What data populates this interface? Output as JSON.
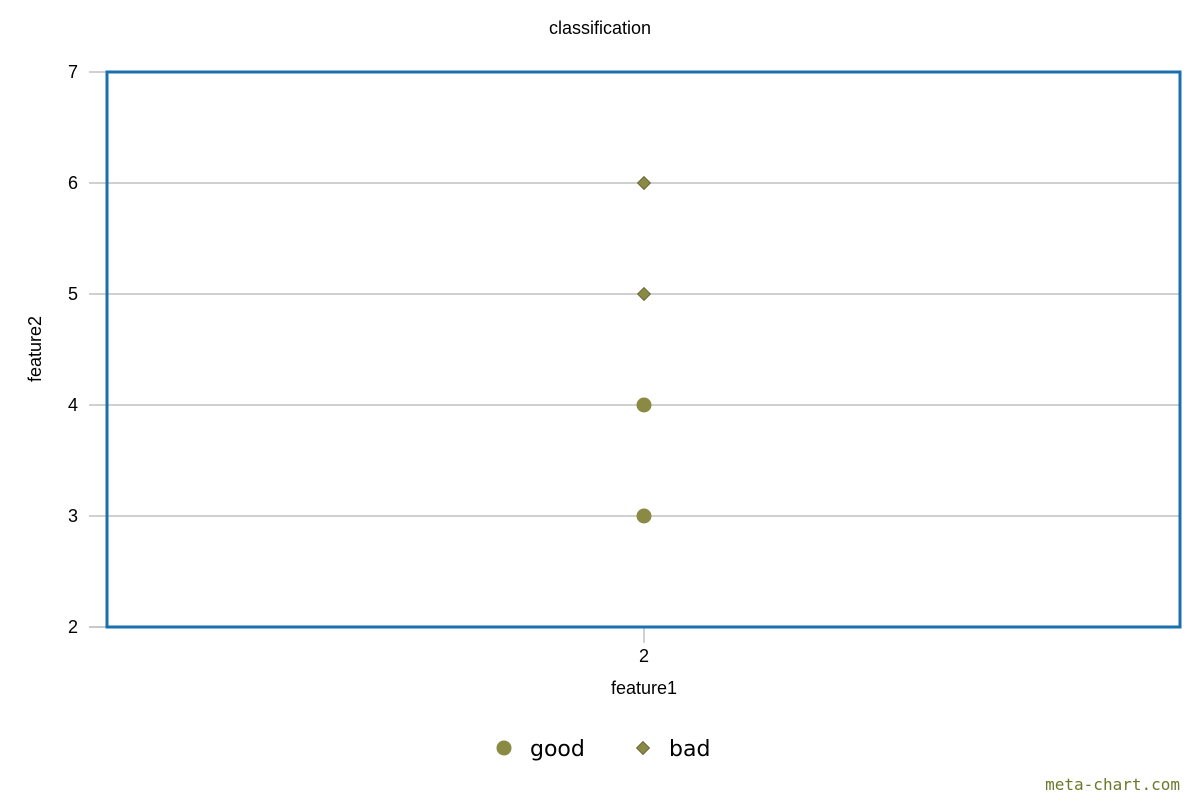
{
  "chart_data": {
    "type": "scatter",
    "title": "classification",
    "xlabel": "feature1",
    "ylabel": "feature2",
    "xticks": [
      2
    ],
    "yticks": [
      2,
      3,
      4,
      5,
      6,
      7
    ],
    "ylim": [
      2,
      7
    ],
    "grid": "horizontal",
    "legend_position": "bottom",
    "series": [
      {
        "name": "good",
        "marker": "circle",
        "color": "#8a8a45",
        "points": [
          {
            "x": 2,
            "y": 3
          },
          {
            "x": 2,
            "y": 4
          }
        ]
      },
      {
        "name": "bad",
        "marker": "diamond",
        "color": "#8a8a45",
        "points": [
          {
            "x": 2,
            "y": 5
          },
          {
            "x": 2,
            "y": 6
          }
        ]
      }
    ],
    "frame_color": "#1a6fae",
    "grid_color": "#c0c0c0"
  },
  "watermark": "meta-chart.com"
}
